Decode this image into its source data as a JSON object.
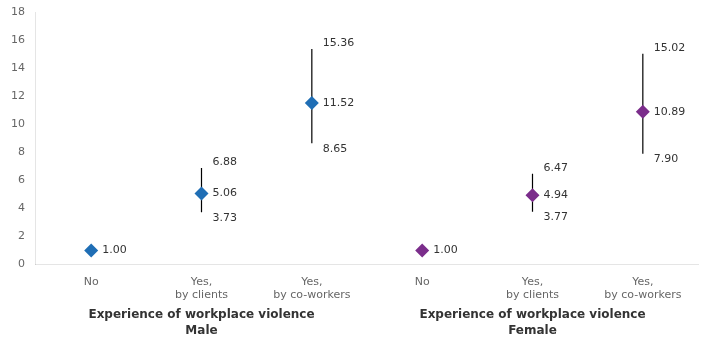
{
  "chart_data": {
    "type": "scatter",
    "categories": [
      "No",
      "Yes,\nby clients",
      "Yes,\nby co-workers",
      "No",
      "Yes,\nby clients",
      "Yes,\nby co-workers"
    ],
    "series": [
      {
        "name": "Male",
        "group_label": "Experience of workplace violence",
        "color": "#1f6eb5",
        "values": [
          1.0,
          5.06,
          11.52,
          null,
          null,
          null
        ],
        "value_labels": [
          "1.00",
          "5.06",
          "11.52",
          null,
          null,
          null
        ],
        "ci_low": [
          null,
          3.73,
          8.65,
          null,
          null,
          null
        ],
        "ci_low_labels": [
          null,
          "3.73",
          "8.65",
          null,
          null,
          null
        ],
        "ci_high": [
          null,
          6.88,
          15.36,
          null,
          null,
          null
        ],
        "ci_high_labels": [
          null,
          "6.88",
          "15.36",
          null,
          null,
          null
        ]
      },
      {
        "name": "Female",
        "group_label": "Experience of workplace violence",
        "color": "#7b2d8b",
        "values": [
          null,
          null,
          null,
          1.0,
          4.94,
          10.89
        ],
        "value_labels": [
          null,
          null,
          null,
          "1.00",
          "4.94",
          "10.89"
        ],
        "ci_low": [
          null,
          null,
          null,
          null,
          3.77,
          7.9
        ],
        "ci_low_labels": [
          null,
          null,
          null,
          null,
          "3.77",
          "7.90"
        ],
        "ci_high": [
          null,
          null,
          null,
          null,
          6.47,
          15.02
        ],
        "ci_high_labels": [
          null,
          null,
          null,
          null,
          "6.47",
          "15.02"
        ]
      }
    ],
    "error_bar_color": "#000000",
    "ylim": [
      0,
      18
    ],
    "yticks": [
      0,
      2,
      4,
      6,
      8,
      10,
      12,
      14,
      16,
      18
    ],
    "grid": false,
    "data_labels": true
  }
}
